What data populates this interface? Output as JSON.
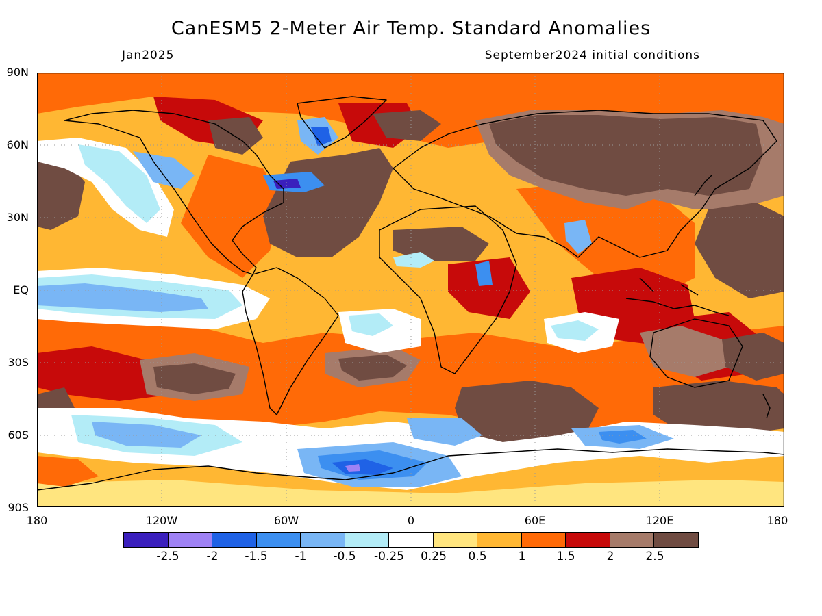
{
  "header": {
    "title": "CanESM5 2-Meter Air Temp. Standard Anomalies",
    "valid_month": "Jan2025",
    "initial_conditions": "September2024 initial conditions"
  },
  "axes": {
    "lat_labels": [
      "90N",
      "60N",
      "30N",
      "EQ",
      "30S",
      "60S",
      "90S"
    ],
    "lon_labels": [
      "180",
      "120W",
      "60W",
      "0",
      "60E",
      "120E",
      "180"
    ]
  },
  "colorbar": {
    "colors": [
      "#3a1fbd",
      "#9f82f5",
      "#1f62e6",
      "#3c8ff0",
      "#79b6f5",
      "#b3ecf7",
      "#ffffff",
      "#ffe57f",
      "#ffb733",
      "#ff6a07",
      "#c70a0a",
      "#a67b6a",
      "#704c42"
    ],
    "labels": [
      "-2.5",
      "-2",
      "-1.5",
      "-1",
      "-0.5",
      "-0.25",
      "0.25",
      "0.5",
      "1",
      "1.5",
      "2",
      "2.5"
    ]
  }
}
